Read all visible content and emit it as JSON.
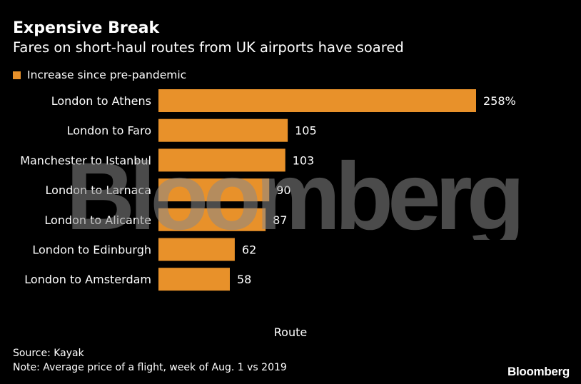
{
  "title": "Expensive Break",
  "subtitle": "Fares on short-haul routes from UK airports have soared",
  "legend": {
    "label": "Increase since pre-pandemic",
    "color": "#E8912A"
  },
  "watermark": "Bloomberg",
  "brand": "Bloomberg",
  "source": "Source: Kayak",
  "note": "Note: Average price of a flight, week of Aug. 1 vs 2019",
  "chart_data": {
    "type": "bar",
    "orientation": "horizontal",
    "title": "Expensive Break",
    "subtitle": "Fares on short-haul routes from UK airports have soared",
    "xlabel": "Route",
    "ylabel": "",
    "categories": [
      "London to Athens",
      "London to Faro",
      "Manchester to Istanbul",
      "London to Larnaca",
      "London to Alicante",
      "London to Edinburgh",
      "London to Amsterdam"
    ],
    "values": [
      258,
      105,
      103,
      90,
      87,
      62,
      58
    ],
    "value_labels": [
      "258%",
      "105",
      "103",
      "90",
      "87",
      "62",
      "58"
    ],
    "series_name": "Increase since pre-pandemic",
    "xlim": [
      0,
      258
    ],
    "grid": false,
    "legend_position": "top-left",
    "bar_color": "#E8912A"
  }
}
